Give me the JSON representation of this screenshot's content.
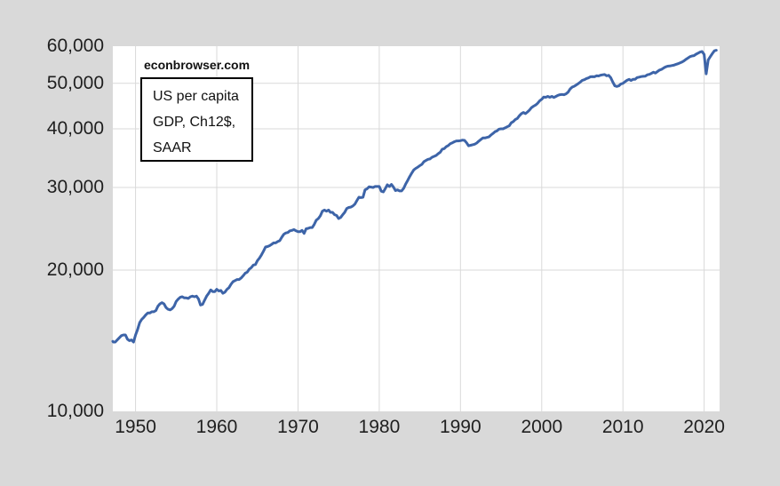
{
  "source_label": "econbrowser.com",
  "annotation_box": {
    "line1": "US per capita",
    "line2": "GDP, Ch12$,",
    "line3": "SAAR"
  },
  "colors": {
    "background": "#d9d9d9",
    "plot_background": "#ffffff",
    "gridline": "#d9d9d9",
    "line": "#3d64a8",
    "label_text": "#1f1f1f"
  },
  "chart_data": {
    "type": "line",
    "title": "US per capita GDP, Ch12$, SAAR",
    "xlabel": "",
    "ylabel": "",
    "scale_y": "log",
    "grid": true,
    "xlim": [
      1947.2,
      2021.9
    ],
    "ylim": [
      10000,
      60000
    ],
    "y_ticks": [
      {
        "value": 10000,
        "label": "10,000"
      },
      {
        "value": 20000,
        "label": "20,000"
      },
      {
        "value": 30000,
        "label": "30,000"
      },
      {
        "value": 40000,
        "label": "40,000"
      },
      {
        "value": 50000,
        "label": "50,000"
      },
      {
        "value": 60000,
        "label": "60,000"
      }
    ],
    "x_ticks": [
      {
        "value": 1950,
        "label": "1950"
      },
      {
        "value": 1960,
        "label": "1960"
      },
      {
        "value": 1970,
        "label": "1970"
      },
      {
        "value": 1980,
        "label": "1980"
      },
      {
        "value": 1990,
        "label": "1990"
      },
      {
        "value": 2000,
        "label": "2000"
      },
      {
        "value": 2010,
        "label": "2010"
      },
      {
        "value": 2020,
        "label": "2020"
      }
    ],
    "series": [
      {
        "name": "US per capita GDP, Ch12$, SAAR",
        "frequency": "quarterly",
        "x_start": 1947.0,
        "x_step": 0.25,
        "values": [
          14100,
          14050,
          14050,
          14200,
          14350,
          14500,
          14550,
          14550,
          14250,
          14150,
          14200,
          14050,
          14550,
          14950,
          15450,
          15700,
          15850,
          16050,
          16200,
          16200,
          16300,
          16300,
          16400,
          16750,
          16950,
          17050,
          16950,
          16650,
          16500,
          16450,
          16550,
          16750,
          17150,
          17350,
          17500,
          17550,
          17450,
          17450,
          17400,
          17550,
          17600,
          17550,
          17600,
          17350,
          16850,
          16900,
          17250,
          17600,
          17850,
          18150,
          18000,
          18000,
          18200,
          18050,
          18100,
          17850,
          17950,
          18200,
          18350,
          18650,
          18900,
          19000,
          19100,
          19100,
          19250,
          19450,
          19700,
          19800,
          20100,
          20250,
          20500,
          20550,
          20950,
          21200,
          21550,
          21950,
          22400,
          22450,
          22550,
          22700,
          22850,
          22850,
          23000,
          23100,
          23500,
          23850,
          24000,
          24050,
          24250,
          24300,
          24400,
          24250,
          24150,
          24150,
          24300,
          23950,
          24500,
          24550,
          24650,
          24650,
          25050,
          25550,
          25750,
          26100,
          26700,
          26850,
          26700,
          26850,
          26550,
          26550,
          26250,
          26150,
          25750,
          25900,
          26250,
          26550,
          27050,
          27200,
          27250,
          27400,
          27650,
          28150,
          28600,
          28550,
          28600,
          29650,
          29800,
          30100,
          30050,
          30000,
          30150,
          30150,
          30150,
          29450,
          29350,
          29850,
          30400,
          30150,
          30450,
          30050,
          29550,
          29650,
          29500,
          29500,
          29850,
          30500,
          31050,
          31650,
          32200,
          32700,
          32950,
          33150,
          33400,
          33600,
          34050,
          34250,
          34450,
          34500,
          34800,
          34950,
          35100,
          35400,
          35650,
          36200,
          36300,
          36650,
          36850,
          37200,
          37350,
          37550,
          37700,
          37700,
          37750,
          37850,
          37800,
          37350,
          36800,
          36900,
          37000,
          37100,
          37300,
          37650,
          37950,
          38250,
          38250,
          38350,
          38450,
          38800,
          39100,
          39450,
          39600,
          39950,
          40000,
          40000,
          40200,
          40400,
          40600,
          41200,
          41450,
          41850,
          42100,
          42650,
          43100,
          43350,
          43100,
          43450,
          43850,
          44400,
          44700,
          44950,
          45350,
          45900,
          46250,
          46750,
          46700,
          46900,
          46700,
          46900,
          46650,
          46900,
          47150,
          47300,
          47350,
          47300,
          47500,
          47900,
          48650,
          49100,
          49300,
          49600,
          49950,
          50300,
          50750,
          50900,
          51200,
          51350,
          51650,
          51700,
          51650,
          51900,
          51850,
          52050,
          52150,
          52200,
          51900,
          52000,
          51400,
          50300,
          49400,
          49250,
          49400,
          49850,
          50000,
          50400,
          50750,
          51000,
          50700,
          51000,
          51000,
          51450,
          51550,
          51700,
          51750,
          51800,
          52150,
          52250,
          52500,
          52800,
          52600,
          53000,
          53350,
          53550,
          53900,
          54200,
          54400,
          54450,
          54550,
          54650,
          54850,
          55050,
          55250,
          55500,
          55800,
          56250,
          56600,
          57000,
          57200,
          57300,
          57700,
          58000,
          58300,
          58450,
          57650,
          52400,
          56100,
          57000,
          57850,
          58650,
          58800
        ]
      }
    ]
  }
}
